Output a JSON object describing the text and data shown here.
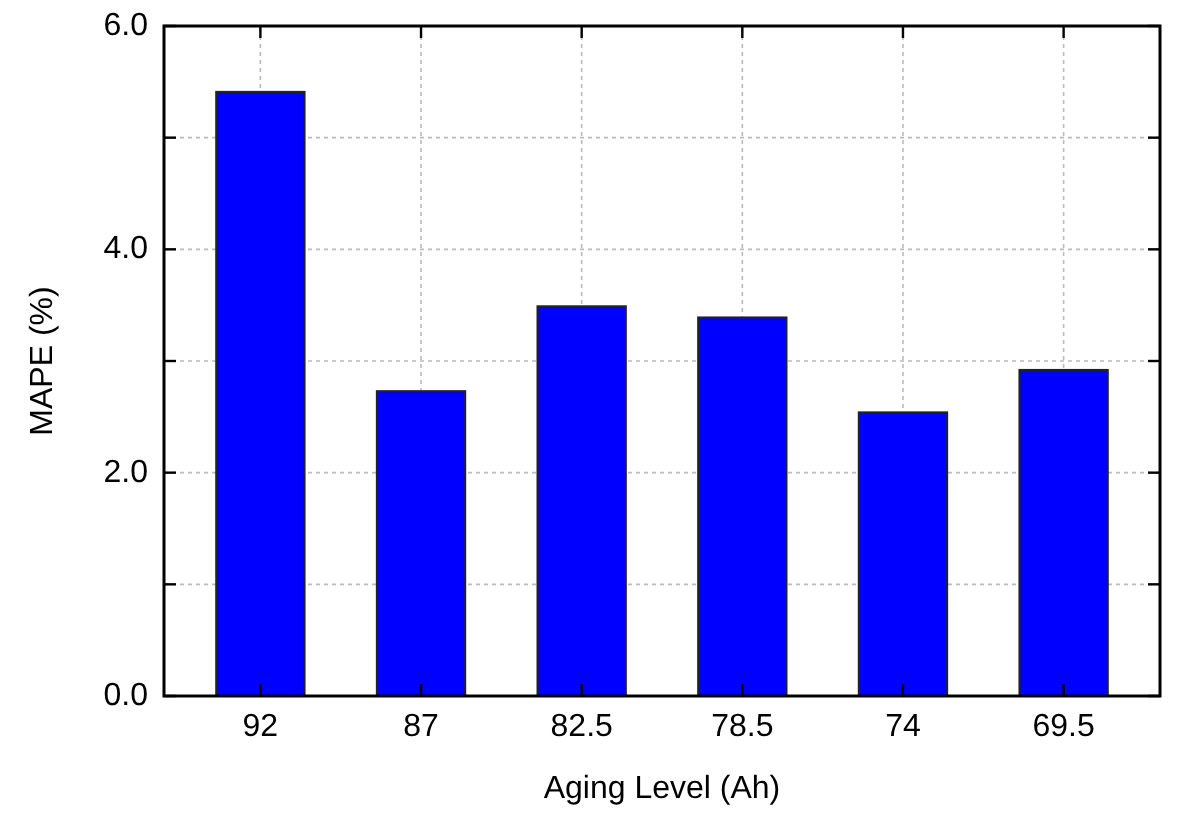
{
  "chart_data": {
    "type": "bar",
    "xlabel": "Aging Level (Ah)",
    "ylabel": "MAPE (%)",
    "categories": [
      "92",
      "87",
      "82.5",
      "78.5",
      "74",
      "69.5"
    ],
    "values": [
      5.41,
      2.73,
      3.49,
      3.39,
      2.54,
      2.92
    ],
    "color": "#0000ff",
    "ylim": [
      0,
      6
    ],
    "yticks": [
      {
        "value": 0,
        "label": "0.0"
      },
      {
        "value": 1,
        "label": null
      },
      {
        "value": 2,
        "label": "2.0"
      },
      {
        "value": 3,
        "label": null
      },
      {
        "value": 4,
        "label": "4.0"
      },
      {
        "value": 5,
        "label": null
      },
      {
        "value": 6,
        "label": "6.0"
      }
    ],
    "grid": true
  }
}
